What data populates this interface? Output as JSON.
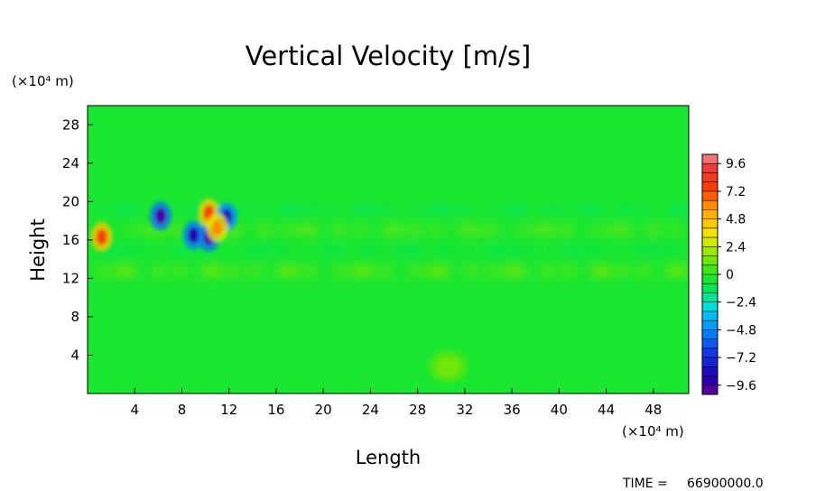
{
  "chart_data": {
    "type": "heatmap",
    "title": "Vertical Velocity [m/s]",
    "xlabel": "Length",
    "ylabel": "Height",
    "x_unit": "(×10⁴ m)",
    "y_unit": "(×10⁴ m)",
    "xlim": [
      0,
      51
    ],
    "ylim": [
      0,
      30
    ],
    "x_ticks": [
      4,
      8,
      12,
      16,
      20,
      24,
      28,
      32,
      36,
      40,
      44,
      48
    ],
    "y_ticks": [
      4,
      8,
      12,
      16,
      20,
      24,
      28
    ],
    "colorbar": {
      "min": -10.4,
      "max": 10.4,
      "step": 0.8,
      "tick_values": [
        9.6,
        7.2,
        4.8,
        2.4,
        0,
        -2.4,
        -4.8,
        -7.2,
        -9.6
      ],
      "tick_labels": [
        "9.6",
        "7.2",
        "4.8",
        "2.4",
        "0",
        "−2.4",
        "−4.8",
        "−7.2",
        "−9.6"
      ]
    },
    "background_value": -0.4,
    "features": [
      {
        "name": "disturbed-layer",
        "x_range": [
          0,
          51
        ],
        "y_range": [
          11,
          19.5
        ],
        "description": "weak fluctuations below tropopause"
      },
      {
        "x": 6.2,
        "y": 18.5,
        "value": -9.6
      },
      {
        "x": 9.0,
        "y": 16.5,
        "value": -9.0
      },
      {
        "x": 10.3,
        "y": 16.3,
        "value": -9.6
      },
      {
        "x": 10.3,
        "y": 18.8,
        "value": 7.5
      },
      {
        "x": 11.8,
        "y": 18.4,
        "value": -8.5
      },
      {
        "x": 11.0,
        "y": 17.3,
        "value": 6.0
      },
      {
        "x": 1.2,
        "y": 16.3,
        "value": 8.0
      },
      {
        "x": 30.6,
        "y": 2.8,
        "value": 1.2
      }
    ],
    "time_label": "TIME =",
    "time_value": "66900000.0"
  }
}
